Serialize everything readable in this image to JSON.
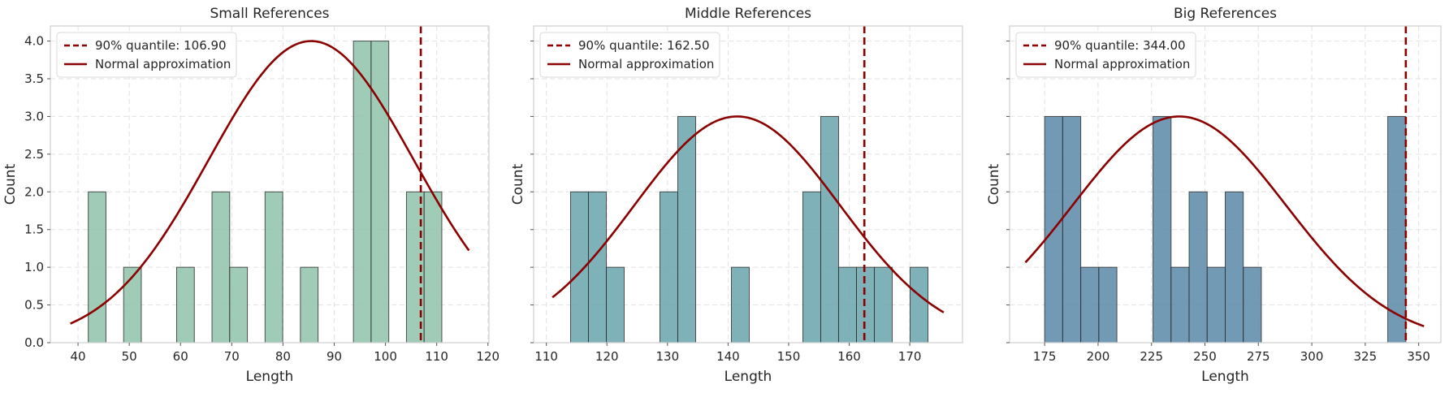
{
  "colors": {
    "accent": "#8b0000",
    "grid": "#e2e2e2",
    "frame": "#cfcfcf",
    "bar_edge": "#2b2b2b"
  },
  "chart_data": [
    {
      "type": "bar",
      "subtype": "histogram",
      "title": "Small References",
      "xlabel": "Length",
      "ylabel": "Count",
      "bar_color": "#8fc2aa",
      "xlim": [
        34.6,
        120.2
      ],
      "ylim": [
        0,
        4.2
      ],
      "xticks": [
        40,
        50,
        60,
        70,
        80,
        90,
        100,
        110,
        120
      ],
      "yticks": [
        0.0,
        0.5,
        1.0,
        1.5,
        2.0,
        2.5,
        3.0,
        3.5,
        4.0
      ],
      "show_yticklabels": true,
      "grid": true,
      "legend_position": "top-left",
      "bin_width": 3.45,
      "bins": [
        {
          "start": 42.0,
          "count": 2
        },
        {
          "start": 48.9,
          "count": 1
        },
        {
          "start": 59.25,
          "count": 1
        },
        {
          "start": 66.15,
          "count": 2
        },
        {
          "start": 69.6,
          "count": 1
        },
        {
          "start": 76.5,
          "count": 2
        },
        {
          "start": 83.4,
          "count": 1
        },
        {
          "start": 93.75,
          "count": 4
        },
        {
          "start": 97.2,
          "count": 4
        },
        {
          "start": 104.1,
          "count": 2
        },
        {
          "start": 107.55,
          "count": 2
        }
      ],
      "quantile": {
        "value": 106.9,
        "label": "90% quantile: 106.90"
      },
      "normal_curve": {
        "label": "Normal approximation",
        "mean": 85.5,
        "sd": 20.0,
        "peak": 4.0,
        "x_range": [
          38.5,
          116.3
        ]
      }
    },
    {
      "type": "bar",
      "subtype": "histogram",
      "title": "Middle References",
      "xlabel": "Length",
      "ylabel": "Count",
      "bar_color": "#68a3ab",
      "xlim": [
        107.9,
        178.7
      ],
      "ylim": [
        0,
        4.2
      ],
      "xticks": [
        110,
        120,
        130,
        140,
        150,
        160,
        170
      ],
      "yticks": [
        0.0,
        0.5,
        1.0,
        1.5,
        2.0,
        2.5,
        3.0,
        3.5,
        4.0
      ],
      "show_yticklabels": false,
      "grid": true,
      "legend_position": "top-left",
      "bin_width": 2.95,
      "bins": [
        {
          "start": 114.0,
          "count": 2
        },
        {
          "start": 116.95,
          "count": 2
        },
        {
          "start": 119.9,
          "count": 1
        },
        {
          "start": 128.75,
          "count": 2
        },
        {
          "start": 131.7,
          "count": 3
        },
        {
          "start": 140.55,
          "count": 1
        },
        {
          "start": 152.35,
          "count": 2
        },
        {
          "start": 155.3,
          "count": 3
        },
        {
          "start": 158.25,
          "count": 1
        },
        {
          "start": 161.2,
          "count": 1
        },
        {
          "start": 164.15,
          "count": 1
        },
        {
          "start": 170.05,
          "count": 1
        }
      ],
      "quantile": {
        "value": 162.5,
        "label": "90% quantile: 162.50"
      },
      "normal_curve": {
        "label": "Normal approximation",
        "mean": 141.5,
        "sd": 17.0,
        "peak": 3.0,
        "x_range": [
          111.0,
          175.6
        ]
      }
    },
    {
      "type": "bar",
      "subtype": "histogram",
      "title": "Big References",
      "xlabel": "Length",
      "ylabel": "Count",
      "bar_color": "#5a88a8",
      "xlim": [
        158.6,
        360.4
      ],
      "ylim": [
        0,
        4.2
      ],
      "xticks": [
        175,
        200,
        225,
        250,
        275,
        300,
        325,
        350
      ],
      "yticks": [
        0.0,
        0.5,
        1.0,
        1.5,
        2.0,
        2.5,
        3.0,
        3.5,
        4.0
      ],
      "show_yticklabels": false,
      "grid": true,
      "legend_position": "top-left",
      "bin_width": 8.45,
      "bins": [
        {
          "start": 175.0,
          "count": 3
        },
        {
          "start": 183.45,
          "count": 3
        },
        {
          "start": 191.9,
          "count": 1
        },
        {
          "start": 200.35,
          "count": 1
        },
        {
          "start": 225.7,
          "count": 3
        },
        {
          "start": 234.15,
          "count": 1
        },
        {
          "start": 242.6,
          "count": 2
        },
        {
          "start": 251.05,
          "count": 1
        },
        {
          "start": 259.5,
          "count": 2
        },
        {
          "start": 267.95,
          "count": 1
        },
        {
          "start": 335.55,
          "count": 3
        }
      ],
      "quantile": {
        "value": 344.0,
        "label": "90% quantile: 344.00"
      },
      "normal_curve": {
        "label": "Normal approximation",
        "mean": 238.0,
        "sd": 50.0,
        "peak": 3.0,
        "x_range": [
          166.0,
          352.5
        ]
      }
    }
  ]
}
